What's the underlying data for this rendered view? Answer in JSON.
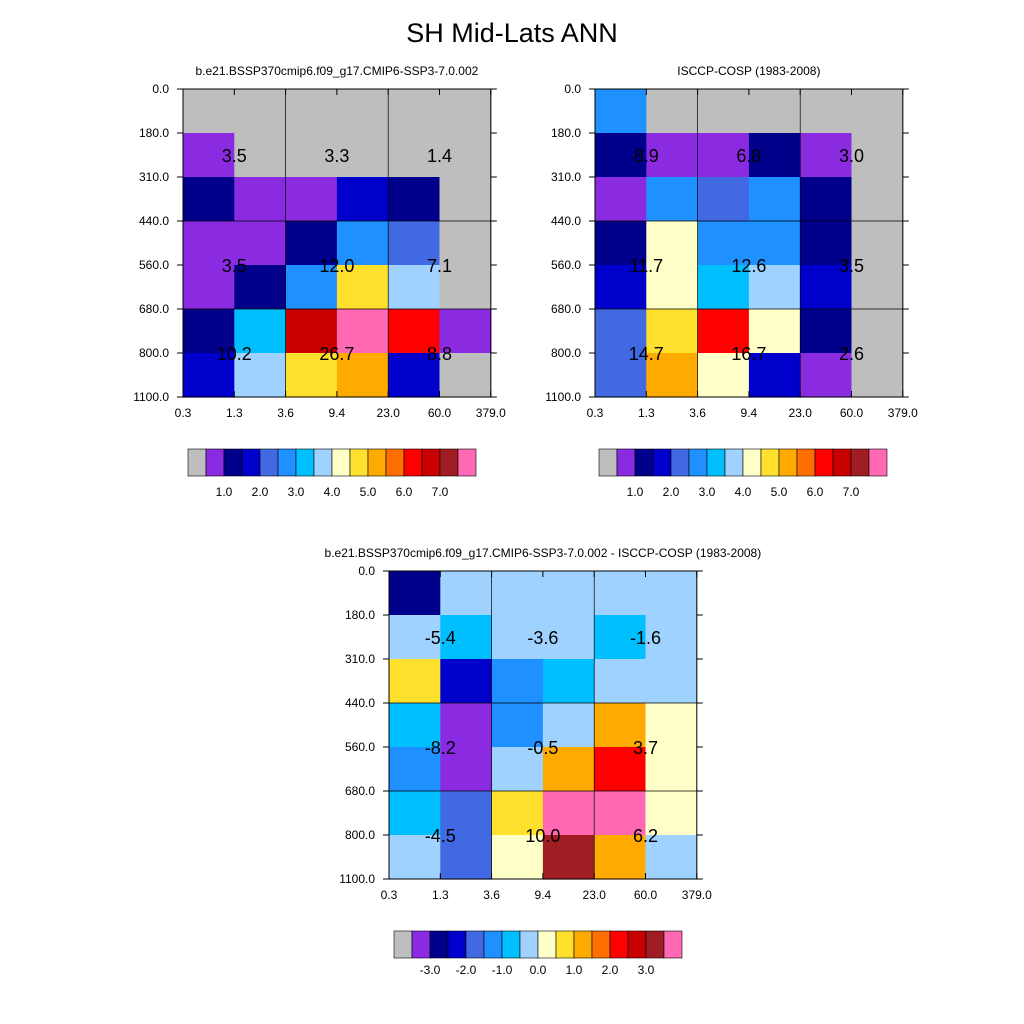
{
  "page": {
    "title": "SH Mid-Lats ANN"
  },
  "palettes": {
    "abs": [
      "#bebebe",
      "#8a2be2",
      "#00008b",
      "#0000cd",
      "#4169e1",
      "#1e90ff",
      "#00bfff",
      "#a0d2ff",
      "#ffffc8",
      "#ffe12d",
      "#ffaa00",
      "#ff6e00",
      "#ff0000",
      "#c80000",
      "#a01e23",
      "#ff69b4"
    ],
    "diff": [
      "#bebebe",
      "#8a2be2",
      "#00008b",
      "#0000cd",
      "#4169e1",
      "#1e90ff",
      "#00bfff",
      "#a0d2ff",
      "#ffffc8",
      "#ffe12d",
      "#ffaa00",
      "#ff6e00",
      "#ff0000",
      "#c80000",
      "#a01e23",
      "#ff69b4"
    ]
  },
  "chart_data": [
    {
      "type": "heatmap",
      "title": "b.e21.BSSP370cmip6.f09_g17.CMIP6-SSP3-7.0.002",
      "x_tick_labels": [
        "0.3",
        "1.3",
        "3.6",
        "9.4",
        "23.0",
        "60.0",
        "379.0"
      ],
      "y_tick_labels": [
        "0.0",
        "180.0",
        "310.0",
        "440.0",
        "560.0",
        "680.0",
        "800.0",
        "1100.0"
      ],
      "cell_color_index": [
        [
          0,
          0,
          0,
          0,
          0,
          0
        ],
        [
          1,
          0,
          0,
          0,
          0,
          0
        ],
        [
          2,
          1,
          1,
          3,
          2,
          0
        ],
        [
          1,
          1,
          2,
          5,
          4,
          0
        ],
        [
          1,
          2,
          5,
          9,
          7,
          0
        ],
        [
          2,
          6,
          13,
          15,
          12,
          1
        ],
        [
          3,
          7,
          9,
          10,
          3,
          0
        ]
      ],
      "group_labels": [
        [
          "3.5",
          "3.3",
          "1.4"
        ],
        [
          "3.5",
          "12.0",
          "7.1"
        ],
        [
          "10.2",
          "26.7",
          "8.8"
        ]
      ],
      "colorbar_labels": [
        "1.0",
        "2.0",
        "3.0",
        "4.0",
        "5.0",
        "6.0",
        "7.0"
      ]
    },
    {
      "type": "heatmap",
      "title": "ISCCP-COSP (1983-2008)",
      "x_tick_labels": [
        "0.3",
        "1.3",
        "3.6",
        "9.4",
        "23.0",
        "60.0",
        "379.0"
      ],
      "y_tick_labels": [
        "0.0",
        "180.0",
        "310.0",
        "440.0",
        "560.0",
        "680.0",
        "800.0",
        "1100.0"
      ],
      "cell_color_index": [
        [
          5,
          0,
          0,
          0,
          0,
          0
        ],
        [
          2,
          1,
          1,
          2,
          1,
          0
        ],
        [
          1,
          5,
          4,
          5,
          2,
          0
        ],
        [
          2,
          8,
          5,
          5,
          2,
          0
        ],
        [
          3,
          8,
          6,
          7,
          3,
          0
        ],
        [
          4,
          9,
          12,
          8,
          2,
          0
        ],
        [
          4,
          10,
          8,
          3,
          1,
          0
        ]
      ],
      "group_labels": [
        [
          "8.9",
          "6.8",
          "3.0"
        ],
        [
          "11.7",
          "12.6",
          "3.5"
        ],
        [
          "14.7",
          "16.7",
          "2.6"
        ]
      ],
      "colorbar_labels": [
        "1.0",
        "2.0",
        "3.0",
        "4.0",
        "5.0",
        "6.0",
        "7.0"
      ]
    },
    {
      "type": "heatmap",
      "title": "b.e21.BSSP370cmip6.f09_g17.CMIP6-SSP3-7.0.002 - ISCCP-COSP (1983-2008)",
      "x_tick_labels": [
        "0.3",
        "1.3",
        "3.6",
        "9.4",
        "23.0",
        "60.0",
        "379.0"
      ],
      "y_tick_labels": [
        "0.0",
        "180.0",
        "310.0",
        "440.0",
        "560.0",
        "680.0",
        "800.0",
        "1100.0"
      ],
      "cell_color_index": [
        [
          2,
          7,
          7,
          7,
          7,
          7
        ],
        [
          7,
          6,
          7,
          7,
          6,
          7
        ],
        [
          9,
          3,
          5,
          6,
          7,
          7
        ],
        [
          6,
          1,
          5,
          7,
          10,
          8
        ],
        [
          5,
          1,
          7,
          10,
          12,
          8
        ],
        [
          6,
          4,
          9,
          15,
          15,
          8
        ],
        [
          7,
          4,
          8,
          14,
          10,
          7
        ]
      ],
      "group_labels": [
        [
          "-5.4",
          "-3.6",
          "-1.6"
        ],
        [
          "-8.2",
          "-0.5",
          "3.7"
        ],
        [
          "-4.5",
          "10.0",
          "6.2"
        ]
      ],
      "colorbar_labels": [
        "-3.0",
        "-2.0",
        "-1.0",
        "0.0",
        "1.0",
        "2.0",
        "3.0"
      ]
    }
  ]
}
